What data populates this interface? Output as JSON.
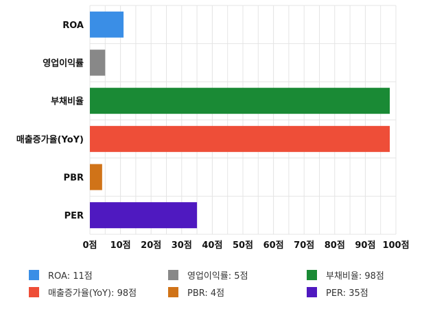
{
  "chart_data": {
    "type": "bar",
    "orientation": "horizontal",
    "categories": [
      "ROA",
      "영업이익률",
      "부채비율",
      "매출증가율(YoY)",
      "PBR",
      "PER"
    ],
    "values": [
      11,
      5,
      98,
      98,
      4,
      35
    ],
    "colors": [
      "#3a8ee6",
      "#888888",
      "#1a8a35",
      "#ee4e38",
      "#d07318",
      "#4f19c0"
    ],
    "xlim": [
      0,
      100
    ],
    "xticks": [
      0,
      10,
      20,
      30,
      40,
      50,
      60,
      70,
      80,
      90,
      100
    ],
    "tick_suffix": "점",
    "grid": true,
    "legend_position": "bottom",
    "legend": [
      {
        "label": "ROA: 11점",
        "color": "#3a8ee6"
      },
      {
        "label": "영업이익률: 5점",
        "color": "#888888"
      },
      {
        "label": "부채비율: 98점",
        "color": "#1a8a35"
      },
      {
        "label": "매출증가율(YoY): 98점",
        "color": "#ee4e38"
      },
      {
        "label": "PBR: 4점",
        "color": "#d07318"
      },
      {
        "label": "PER: 35점",
        "color": "#4f19c0"
      }
    ]
  }
}
